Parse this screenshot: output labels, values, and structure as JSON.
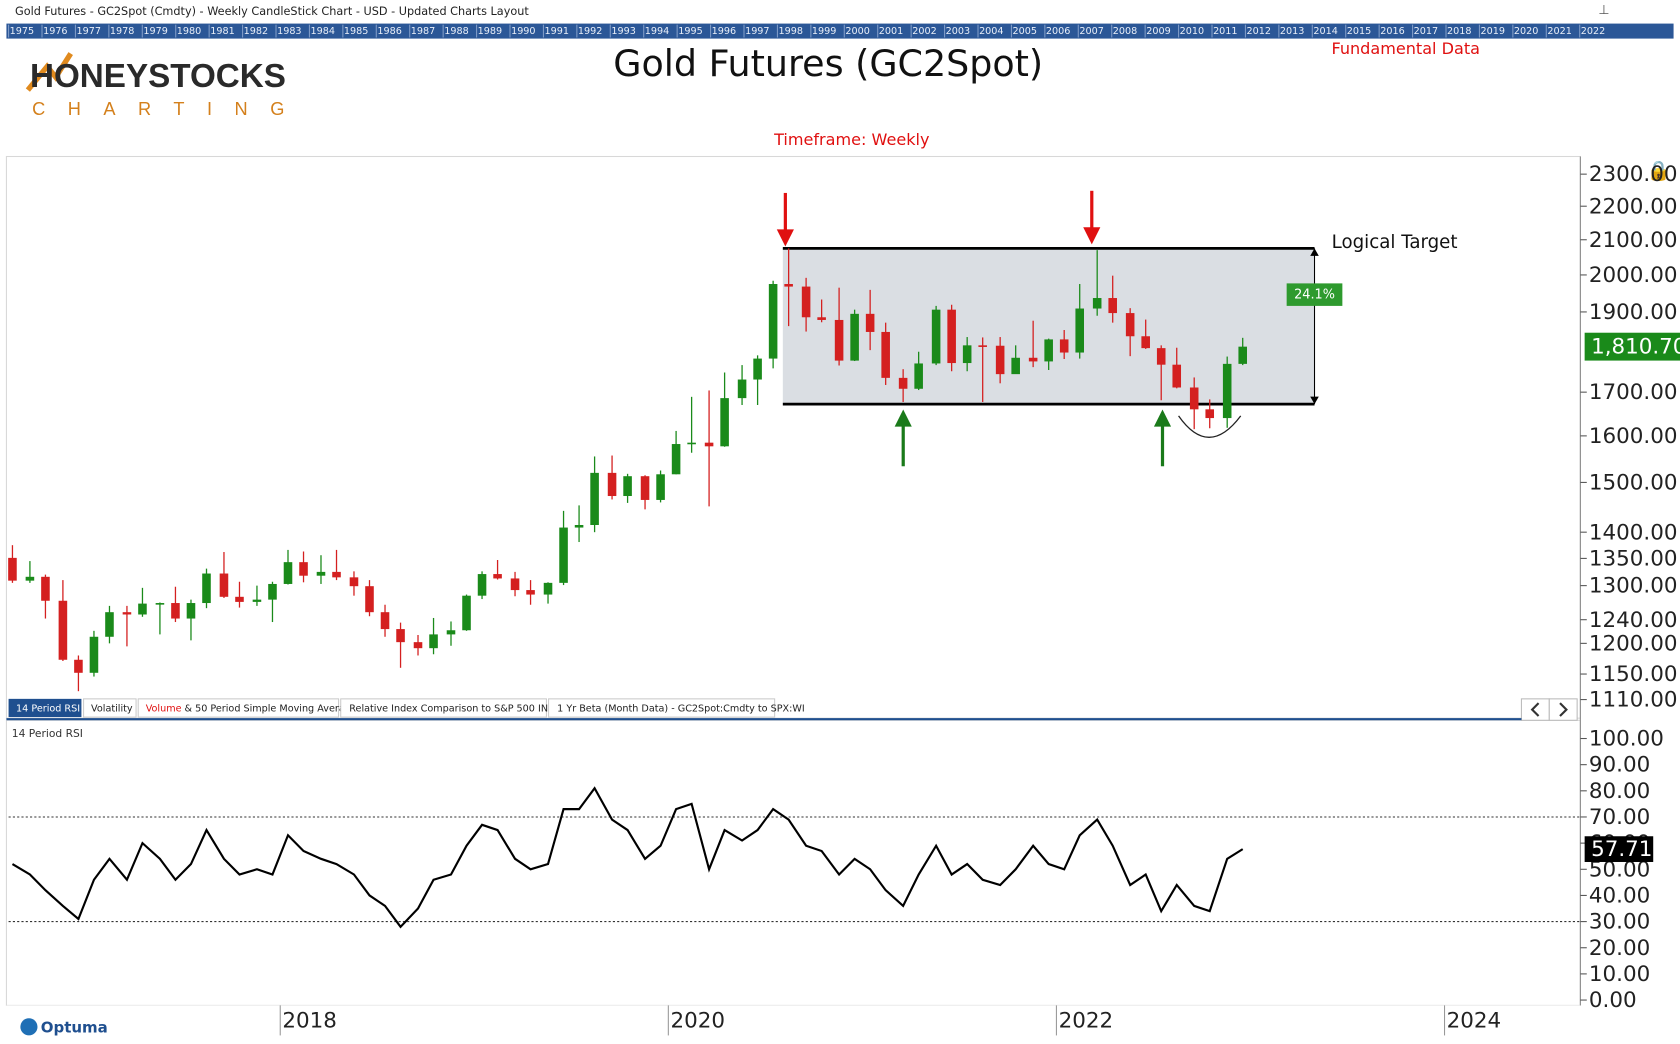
{
  "window_title": "Gold Futures - GC2Spot (Cmdty) - Weekly CandleStick Chart - USD - Updated Charts Layout",
  "year_strip": [
    "1975",
    "1976",
    "1977",
    "1978",
    "1979",
    "1980",
    "1981",
    "1982",
    "1983",
    "1984",
    "1985",
    "1986",
    "1987",
    "1988",
    "1989",
    "1990",
    "1991",
    "1992",
    "1993",
    "1994",
    "1995",
    "1996",
    "1997",
    "1998",
    "1999",
    "2000",
    "2001",
    "2002",
    "2003",
    "2004",
    "2005",
    "2006",
    "2007",
    "2008",
    "2009",
    "2010",
    "2011",
    "2012",
    "2013",
    "2014",
    "2015",
    "2016",
    "2017",
    "2018",
    "2019",
    "2020",
    "2021",
    "2022"
  ],
  "logo": {
    "name": "HONEYSTOCKS",
    "tagline": "CHARTING"
  },
  "fundamental_link": "Fundamental Data",
  "tabs": [
    "14 Period RSI",
    "Volatility",
    [
      "Volume",
      "& 50 Period Simple Moving Average"
    ],
    "Relative Index Comparison to S&P 500 INDEX",
    "1 Yr Beta (Month Data) - GC2Spot:Cmdty to SPX:WI"
  ],
  "footer_brand": "Optuma",
  "chart_data": [
    {
      "type": "candlestick",
      "title": "Gold Futures (GC2Spot)",
      "subtitle": "Timeframe: Weekly",
      "log_scale": true,
      "up_color": "#1a8a1a",
      "down_color": "#d42020",
      "xlim": [
        2016.6,
        2024.7
      ],
      "ylim": [
        1085,
        2350
      ],
      "yticks": [
        {
          "value": 2300,
          "label": "2300.00"
        },
        {
          "value": 2200,
          "label": "2200.00"
        },
        {
          "value": 2100,
          "label": "2100.00"
        },
        {
          "value": 2000,
          "label": "2000.00"
        },
        {
          "value": 1900,
          "label": "1900.00"
        },
        {
          "value": 1700,
          "label": "1700.00"
        },
        {
          "value": 1600,
          "label": "1600.00"
        },
        {
          "value": 1500,
          "label": "1500.00"
        },
        {
          "value": 1400,
          "label": "1400.00"
        },
        {
          "value": 1350,
          "label": "1350.00"
        },
        {
          "value": 1300,
          "label": "1300.00"
        },
        {
          "value": 1240,
          "label": "1240.00"
        },
        {
          "value": 1200,
          "label": "1200.00"
        },
        {
          "value": 1150,
          "label": "1150.00"
        },
        {
          "value": 1110,
          "label": "1110.00"
        }
      ],
      "x": [
        2016.62,
        2016.71,
        2016.79,
        2016.88,
        2016.96,
        2017.04,
        2017.12,
        2017.21,
        2017.29,
        2017.38,
        2017.46,
        2017.54,
        2017.62,
        2017.71,
        2017.79,
        2017.88,
        2017.96,
        2018.04,
        2018.12,
        2018.21,
        2018.29,
        2018.38,
        2018.46,
        2018.54,
        2018.62,
        2018.71,
        2018.79,
        2018.88,
        2018.96,
        2019.04,
        2019.12,
        2019.21,
        2019.29,
        2019.38,
        2019.46,
        2019.54,
        2019.62,
        2019.71,
        2019.79,
        2019.88,
        2019.96,
        2020.04,
        2020.12,
        2020.21,
        2020.29,
        2020.38,
        2020.46,
        2020.54,
        2020.62,
        2020.71,
        2020.79,
        2020.88,
        2020.96,
        2021.04,
        2021.12,
        2021.21,
        2021.29,
        2021.38,
        2021.46,
        2021.54,
        2021.62,
        2021.71,
        2021.79,
        2021.88,
        2021.96,
        2022.04,
        2022.12,
        2022.21,
        2022.29,
        2022.38,
        2022.46,
        2022.54,
        2022.62,
        2022.71,
        2022.79,
        2022.88,
        2022.96
      ],
      "open": [
        1351,
        1309,
        1316,
        1273,
        1173,
        1152,
        1211,
        1253,
        1249,
        1268,
        1269,
        1242,
        1269,
        1322,
        1280,
        1271,
        1275,
        1303,
        1343,
        1318,
        1325,
        1315,
        1299,
        1253,
        1224,
        1202,
        1192,
        1215,
        1222,
        1282,
        1321,
        1313,
        1292,
        1284,
        1305,
        1409,
        1414,
        1520,
        1472,
        1513,
        1464,
        1517,
        1582,
        1585,
        1577,
        1686,
        1730,
        1781,
        1975,
        1968,
        1886,
        1879,
        1776,
        1895,
        1848,
        1734,
        1708,
        1769,
        1906,
        1770,
        1814,
        1813,
        1743,
        1783,
        1774,
        1829,
        1796,
        1909,
        1937,
        1897,
        1837,
        1807,
        1766,
        1711,
        1660,
        1640,
        1768
      ],
      "high": [
        1375,
        1345,
        1320,
        1310,
        1180,
        1221,
        1264,
        1264,
        1296,
        1270,
        1298,
        1275,
        1331,
        1362,
        1307,
        1300,
        1307,
        1366,
        1363,
        1356,
        1366,
        1326,
        1310,
        1266,
        1235,
        1214,
        1243,
        1237,
        1284,
        1326,
        1347,
        1325,
        1310,
        1306,
        1442,
        1453,
        1555,
        1557,
        1518,
        1515,
        1525,
        1611,
        1689,
        1704,
        1747,
        1765,
        1789,
        1984,
        2075,
        1992,
        1933,
        1965,
        1906,
        1959,
        1872,
        1755,
        1798,
        1916,
        1919,
        1835,
        1834,
        1835,
        1814,
        1877,
        1831,
        1853,
        1975,
        2070,
        1998,
        1910,
        1880,
        1814,
        1808,
        1735,
        1683,
        1786,
        1833
      ],
      "low": [
        1305,
        1305,
        1242,
        1171,
        1123,
        1146,
        1200,
        1195,
        1245,
        1215,
        1236,
        1205,
        1260,
        1278,
        1261,
        1264,
        1236,
        1302,
        1306,
        1303,
        1310,
        1282,
        1246,
        1211,
        1160,
        1180,
        1182,
        1196,
        1221,
        1276,
        1311,
        1281,
        1266,
        1268,
        1301,
        1381,
        1400,
        1465,
        1458,
        1445,
        1459,
        1517,
        1563,
        1451,
        1576,
        1670,
        1670,
        1757,
        1863,
        1849,
        1873,
        1764,
        1775,
        1802,
        1717,
        1677,
        1705,
        1765,
        1750,
        1750,
        1677,
        1721,
        1746,
        1760,
        1753,
        1780,
        1781,
        1890,
        1872,
        1787,
        1805,
        1681,
        1709,
        1615,
        1617,
        1618,
        1765
      ],
      "close": [
        1309,
        1316,
        1273,
        1173,
        1152,
        1211,
        1253,
        1249,
        1268,
        1269,
        1242,
        1269,
        1322,
        1280,
        1271,
        1275,
        1303,
        1343,
        1318,
        1325,
        1315,
        1299,
        1253,
        1224,
        1202,
        1192,
        1215,
        1222,
        1282,
        1321,
        1313,
        1292,
        1284,
        1305,
        1409,
        1414,
        1520,
        1472,
        1513,
        1464,
        1517,
        1582,
        1585,
        1577,
        1686,
        1730,
        1781,
        1975,
        1968,
        1886,
        1879,
        1776,
        1895,
        1848,
        1734,
        1708,
        1769,
        1906,
        1770,
        1814,
        1813,
        1743,
        1783,
        1774,
        1829,
        1796,
        1909,
        1937,
        1897,
        1837,
        1807,
        1766,
        1711,
        1660,
        1640,
        1768,
        1810.7
      ],
      "last": {
        "value": 1810.7,
        "label": "1,810.70"
      },
      "zone": {
        "xlim": [
          2020.59,
          2023.33
        ],
        "ylim": [
          1672,
          2075
        ],
        "change": {
          "value": 24.1,
          "label": "24.1%"
        }
      },
      "annotation": "Logical Target"
    },
    {
      "type": "line",
      "title": "14 Period RSI",
      "color": "#000000",
      "xlim": [
        2016.6,
        2024.7
      ],
      "ylim": [
        0,
        100
      ],
      "xticks": [
        2018,
        2020,
        2022,
        2024
      ],
      "yticks": [
        {
          "value": 100,
          "label": "100.00"
        },
        {
          "value": 90,
          "label": "90.00"
        },
        {
          "value": 80,
          "label": "80.00"
        },
        {
          "value": 70,
          "label": "70.00"
        },
        {
          "value": 60,
          "label": "60.00"
        },
        {
          "value": 50,
          "label": "50.00"
        },
        {
          "value": 40,
          "label": "40.00"
        },
        {
          "value": 30,
          "label": "30.00"
        },
        {
          "value": 20,
          "label": "20.00"
        },
        {
          "value": 10,
          "label": "10.00"
        },
        {
          "value": 0,
          "label": "0.00"
        }
      ],
      "ref_lines": [
        70,
        30
      ],
      "x": [
        2016.62,
        2016.71,
        2016.79,
        2016.88,
        2016.96,
        2017.04,
        2017.12,
        2017.21,
        2017.29,
        2017.38,
        2017.46,
        2017.54,
        2017.62,
        2017.71,
        2017.79,
        2017.88,
        2017.96,
        2018.04,
        2018.12,
        2018.21,
        2018.29,
        2018.38,
        2018.46,
        2018.54,
        2018.62,
        2018.71,
        2018.79,
        2018.88,
        2018.96,
        2019.04,
        2019.12,
        2019.21,
        2019.29,
        2019.38,
        2019.46,
        2019.54,
        2019.62,
        2019.71,
        2019.79,
        2019.88,
        2019.96,
        2020.04,
        2020.12,
        2020.21,
        2020.29,
        2020.38,
        2020.46,
        2020.54,
        2020.62,
        2020.71,
        2020.79,
        2020.88,
        2020.96,
        2021.04,
        2021.12,
        2021.21,
        2021.29,
        2021.38,
        2021.46,
        2021.54,
        2021.62,
        2021.71,
        2021.79,
        2021.88,
        2021.96,
        2022.04,
        2022.12,
        2022.21,
        2022.29,
        2022.38,
        2022.46,
        2022.54,
        2022.62,
        2022.71,
        2022.79,
        2022.88,
        2022.96
      ],
      "values": [
        52,
        48,
        42,
        36,
        31,
        46,
        54,
        46,
        60,
        54,
        46,
        52,
        65,
        54,
        48,
        50,
        48,
        63,
        57,
        54,
        52,
        48,
        40,
        36,
        28,
        35,
        46,
        48,
        59,
        67,
        65,
        54,
        50,
        52,
        73,
        73,
        81,
        69,
        65,
        54,
        59,
        73,
        75,
        50,
        65,
        61,
        65,
        73,
        69,
        59,
        57,
        48,
        54,
        50,
        42,
        36,
        48,
        59,
        48,
        52,
        46,
        44,
        50,
        59,
        52,
        50,
        63,
        69,
        59,
        44,
        48,
        34,
        44,
        36,
        34,
        54,
        57.71
      ]
    }
  ]
}
